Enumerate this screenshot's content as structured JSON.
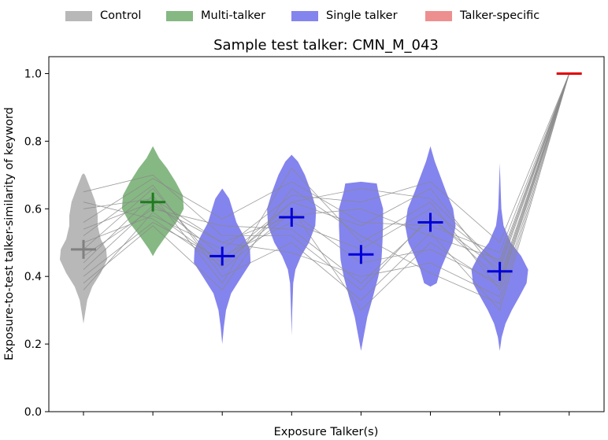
{
  "legend": {
    "control": {
      "label": "Control",
      "color": "#b8b8b8"
    },
    "multi": {
      "label": "Multi-talker",
      "color": "#86b883"
    },
    "single": {
      "label": "Single talker",
      "color": "#8484ee"
    },
    "specific": {
      "label": "Talker-specific",
      "color": "#ee8f8f"
    }
  },
  "chart_data": {
    "type": "violin",
    "title": "Sample test talker: CMN_M_043",
    "xlabel": "Exposure Talker(s)",
    "ylabel": "Exposure-to-test talker-similarity of keyword",
    "ylim": [
      0.0,
      1.05
    ],
    "yticks": [
      0.0,
      0.2,
      0.4,
      0.6,
      0.8,
      1.0
    ],
    "ytick_labels": [
      "0.0",
      "0.2",
      "0.4",
      "0.6",
      "0.8",
      "1.0"
    ],
    "grid": false,
    "legend_position": "top",
    "series": [
      {
        "group": "Control",
        "color": "#b8b8b8",
        "mean_color": "#808080",
        "mean": 0.48,
        "min": 0.26,
        "max": 0.705,
        "profile": [
          [
            0.26,
            0.0
          ],
          [
            0.29,
            0.05
          ],
          [
            0.33,
            0.12
          ],
          [
            0.37,
            0.28
          ],
          [
            0.41,
            0.55
          ],
          [
            0.45,
            0.75
          ],
          [
            0.48,
            0.72
          ],
          [
            0.51,
            0.55
          ],
          [
            0.55,
            0.45
          ],
          [
            0.58,
            0.45
          ],
          [
            0.62,
            0.38
          ],
          [
            0.66,
            0.22
          ],
          [
            0.7,
            0.05
          ],
          [
            0.705,
            0.0
          ]
        ]
      },
      {
        "group": "Multi-talker",
        "color": "#86b883",
        "mean_color": "#1f7a1f",
        "mean": 0.62,
        "min": 0.46,
        "max": 0.785,
        "profile": [
          [
            0.46,
            0.0
          ],
          [
            0.48,
            0.12
          ],
          [
            0.52,
            0.42
          ],
          [
            0.56,
            0.75
          ],
          [
            0.6,
            0.98
          ],
          [
            0.64,
            0.95
          ],
          [
            0.68,
            0.72
          ],
          [
            0.72,
            0.45
          ],
          [
            0.75,
            0.2
          ],
          [
            0.785,
            0.0
          ]
        ]
      },
      {
        "group": "Single talker",
        "color": "#8484ee",
        "mean_color": "#0000d8",
        "mean": 0.46,
        "min": 0.2,
        "max": 0.66,
        "profile": [
          [
            0.2,
            0.0
          ],
          [
            0.25,
            0.05
          ],
          [
            0.3,
            0.12
          ],
          [
            0.35,
            0.28
          ],
          [
            0.4,
            0.62
          ],
          [
            0.44,
            0.9
          ],
          [
            0.48,
            0.88
          ],
          [
            0.52,
            0.68
          ],
          [
            0.56,
            0.45
          ],
          [
            0.6,
            0.32
          ],
          [
            0.63,
            0.22
          ],
          [
            0.66,
            0.0
          ]
        ]
      },
      {
        "group": "Single talker",
        "color": "#8484ee",
        "mean_color": "#0000d8",
        "mean": 0.575,
        "min": 0.225,
        "max": 0.76,
        "profile": [
          [
            0.225,
            0.0
          ],
          [
            0.3,
            0.02
          ],
          [
            0.38,
            0.05
          ],
          [
            0.42,
            0.12
          ],
          [
            0.46,
            0.3
          ],
          [
            0.5,
            0.55
          ],
          [
            0.55,
            0.75
          ],
          [
            0.6,
            0.78
          ],
          [
            0.65,
            0.62
          ],
          [
            0.7,
            0.42
          ],
          [
            0.74,
            0.2
          ],
          [
            0.76,
            0.0
          ]
        ]
      },
      {
        "group": "Single talker",
        "color": "#8484ee",
        "mean_color": "#0000d8",
        "mean": 0.465,
        "min": 0.18,
        "max": 0.68,
        "profile": [
          [
            0.18,
            0.0
          ],
          [
            0.22,
            0.08
          ],
          [
            0.28,
            0.2
          ],
          [
            0.34,
            0.38
          ],
          [
            0.4,
            0.55
          ],
          [
            0.45,
            0.65
          ],
          [
            0.5,
            0.68
          ],
          [
            0.55,
            0.7
          ],
          [
            0.6,
            0.7
          ],
          [
            0.65,
            0.55
          ],
          [
            0.675,
            0.5
          ],
          [
            0.68,
            0.0
          ]
        ]
      },
      {
        "group": "Single talker",
        "color": "#8484ee",
        "mean_color": "#0000d8",
        "mean": 0.56,
        "min": 0.37,
        "max": 0.785,
        "profile": [
          [
            0.37,
            0.0
          ],
          [
            0.38,
            0.2
          ],
          [
            0.42,
            0.32
          ],
          [
            0.46,
            0.5
          ],
          [
            0.5,
            0.7
          ],
          [
            0.55,
            0.8
          ],
          [
            0.6,
            0.72
          ],
          [
            0.65,
            0.5
          ],
          [
            0.7,
            0.3
          ],
          [
            0.74,
            0.14
          ],
          [
            0.785,
            0.0
          ]
        ]
      },
      {
        "group": "Single talker",
        "color": "#8484ee",
        "mean_color": "#0000d8",
        "mean": 0.415,
        "min": 0.18,
        "max": 0.735,
        "profile": [
          [
            0.18,
            0.0
          ],
          [
            0.22,
            0.06
          ],
          [
            0.26,
            0.18
          ],
          [
            0.3,
            0.38
          ],
          [
            0.34,
            0.62
          ],
          [
            0.38,
            0.85
          ],
          [
            0.42,
            0.9
          ],
          [
            0.46,
            0.68
          ],
          [
            0.5,
            0.35
          ],
          [
            0.55,
            0.12
          ],
          [
            0.6,
            0.05
          ],
          [
            0.65,
            0.03
          ],
          [
            0.735,
            0.0
          ]
        ]
      },
      {
        "group": "Talker-specific",
        "color": "#ee8f8f",
        "mean_color": "#e00000",
        "mean": 1.0,
        "min": 1.0,
        "max": 1.0,
        "profile": []
      }
    ],
    "paired_lines": [
      [
        0.4,
        0.56,
        0.45,
        0.62,
        0.55,
        0.66,
        0.4,
        1.0
      ],
      [
        0.42,
        0.61,
        0.5,
        0.58,
        0.6,
        0.52,
        0.45,
        1.0
      ],
      [
        0.44,
        0.64,
        0.38,
        0.72,
        0.5,
        0.62,
        0.36,
        1.0
      ],
      [
        0.46,
        0.6,
        0.55,
        0.54,
        0.38,
        0.57,
        0.42,
        1.0
      ],
      [
        0.48,
        0.66,
        0.42,
        0.59,
        0.44,
        0.48,
        0.38,
        1.0
      ],
      [
        0.5,
        0.58,
        0.48,
        0.64,
        0.62,
        0.68,
        0.5,
        1.0
      ],
      [
        0.52,
        0.67,
        0.4,
        0.5,
        0.33,
        0.53,
        0.3,
        1.0
      ],
      [
        0.54,
        0.62,
        0.46,
        0.56,
        0.48,
        0.6,
        0.44,
        1.0
      ],
      [
        0.56,
        0.69,
        0.57,
        0.68,
        0.56,
        0.55,
        0.47,
        1.0
      ],
      [
        0.6,
        0.63,
        0.5,
        0.47,
        0.4,
        0.44,
        0.34,
        1.0
      ],
      [
        0.62,
        0.57,
        0.43,
        0.62,
        0.66,
        0.63,
        0.43,
        1.0
      ],
      [
        0.65,
        0.7,
        0.52,
        0.52,
        0.36,
        0.58,
        0.39,
        1.0
      ],
      [
        0.38,
        0.55,
        0.36,
        0.66,
        0.52,
        0.41,
        0.32,
        1.0
      ],
      [
        0.36,
        0.59,
        0.44,
        0.6,
        0.3,
        0.5,
        0.37,
        1.0
      ]
    ]
  }
}
